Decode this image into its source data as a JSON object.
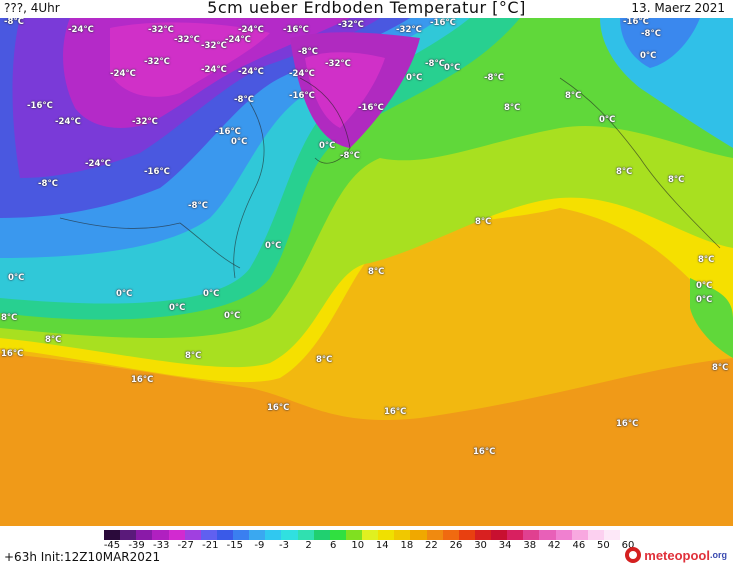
{
  "header": {
    "left": "???, 4Uhr",
    "title": "5cm ueber Erdboden Temperatur [°C]",
    "date": "13. Maerz 2021"
  },
  "map_labels": [
    {
      "text": "-8°C"
    },
    {
      "text": "-24°C"
    },
    {
      "text": "-32°C"
    },
    {
      "text": "-24°C"
    },
    {
      "text": "-16°C"
    },
    {
      "text": "-32°C"
    },
    {
      "text": "-32°C"
    },
    {
      "text": "-16°C"
    },
    {
      "text": "-32°C"
    },
    {
      "text": "-24°C"
    },
    {
      "text": "-8°C"
    },
    {
      "text": "-32°C"
    },
    {
      "text": "-32°C"
    },
    {
      "text": "-24°C"
    },
    {
      "text": "-24°C"
    },
    {
      "text": "-8°C"
    },
    {
      "text": "-32°C"
    },
    {
      "text": "-24°C"
    },
    {
      "text": "0°C"
    },
    {
      "text": "0°C"
    },
    {
      "text": "-8°C"
    },
    {
      "text": "-16°C"
    },
    {
      "text": "-24°C"
    },
    {
      "text": "-8°C"
    },
    {
      "text": "-16°C"
    },
    {
      "text": "-24°C"
    },
    {
      "text": "-16°C"
    },
    {
      "text": "-32°C"
    },
    {
      "text": "-16°C"
    },
    {
      "text": "0°C"
    },
    {
      "text": "0°C"
    },
    {
      "text": "-8°C"
    },
    {
      "text": "8°C"
    },
    {
      "text": "8°C"
    },
    {
      "text": "0°C"
    },
    {
      "text": "-24°C"
    },
    {
      "text": "-16°C"
    },
    {
      "text": "-16°C"
    },
    {
      "text": "8°C"
    },
    {
      "text": "8°C"
    },
    {
      "text": "-8°C"
    },
    {
      "text": "-8°C"
    },
    {
      "text": "8°C"
    },
    {
      "text": "-8°C"
    },
    {
      "text": "0°C"
    },
    {
      "text": "8°C"
    },
    {
      "text": "0°C"
    },
    {
      "text": "0°C"
    },
    {
      "text": "0°C"
    },
    {
      "text": "0°C"
    },
    {
      "text": "0°C"
    },
    {
      "text": "8°C"
    },
    {
      "text": "8°C"
    },
    {
      "text": "0°C"
    },
    {
      "text": "8°C"
    },
    {
      "text": "16°C"
    },
    {
      "text": "8°C"
    },
    {
      "text": "8°C"
    },
    {
      "text": "16°C"
    },
    {
      "text": "8°C"
    },
    {
      "text": "16°C"
    },
    {
      "text": "16°C"
    },
    {
      "text": "16°C"
    },
    {
      "text": "16°C"
    },
    {
      "text": "0°C"
    },
    {
      "text": "0°C"
    }
  ],
  "scale": {
    "colors": [
      "#2a0a3a",
      "#5a1a7a",
      "#8a1aa8",
      "#b020c0",
      "#d22ad0",
      "#a040e0",
      "#6060f0",
      "#3a5ae8",
      "#3a7ff0",
      "#3aa8f0",
      "#30c8f0",
      "#30e0e0",
      "#30e0b0",
      "#20d070",
      "#30e040",
      "#80e020",
      "#e0f020",
      "#f0e000",
      "#f0c800",
      "#f0a800",
      "#f08a10",
      "#f06a10",
      "#e84010",
      "#d82020",
      "#c81030",
      "#d82060",
      "#e04090",
      "#e860b8",
      "#f080d0",
      "#f8a8e0",
      "#fcd0f0",
      "#fde8f8"
    ],
    "ticks": [
      "-45",
      "-39",
      "-33",
      "-27",
      "-21",
      "-15",
      "-9",
      "-3",
      "2",
      "6",
      "10",
      "14",
      "18",
      "22",
      "26",
      "30",
      "34",
      "38",
      "42",
      "46",
      "50",
      "60"
    ]
  },
  "footer": {
    "init": "+63h Init:12Z10MAR2021",
    "brand": "meteopool",
    "brand_tld": ".org",
    "logo_icon": "meteopool-logo-icon"
  }
}
